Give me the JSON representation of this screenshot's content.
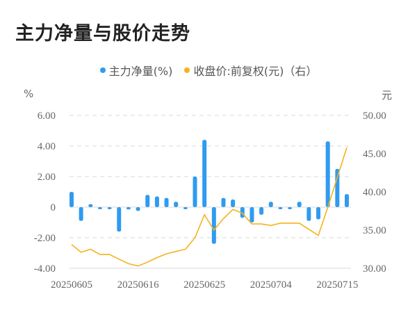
{
  "title": "主力净量与股价走势",
  "legend": [
    {
      "label": "主力净量(%)",
      "color": "#2f9bf0"
    },
    {
      "label": "收盘价:前复权(元)（右）",
      "color": "#f5b21b"
    }
  ],
  "left_unit": "%",
  "right_unit": "元",
  "colors": {
    "bar": "#2f9bf0",
    "line": "#f5b21b",
    "grid": "#e6e6e6",
    "text": "#666666"
  },
  "chart_data": {
    "type": "bar+line",
    "title": "主力净量与股价走势",
    "x_tick_labels": [
      "20250605",
      "20250616",
      "20250625",
      "20250704",
      "20250715"
    ],
    "x_tick_indices": [
      0,
      7,
      14,
      21,
      28
    ],
    "left_axis": {
      "label": "%",
      "ticks": [
        "6.00",
        "4.00",
        "2.00",
        "0",
        "-2.00",
        "-4.00"
      ],
      "range": [
        -4,
        6
      ]
    },
    "right_axis": {
      "label": "元",
      "ticks": [
        "50.00",
        "45.00",
        "40.00",
        "35.00",
        "30.00"
      ],
      "range": [
        30,
        50
      ]
    },
    "grid": true,
    "legend_position": "top",
    "series": [
      {
        "name": "主力净量(%)",
        "type": "bar",
        "axis": "left",
        "values": [
          1.0,
          -0.9,
          0.2,
          -0.1,
          -0.1,
          -1.6,
          -0.15,
          -0.25,
          0.8,
          0.7,
          0.6,
          0.35,
          -0.1,
          2.0,
          4.4,
          -2.4,
          0.6,
          0.5,
          -0.7,
          -1.0,
          -0.5,
          0.35,
          -0.1,
          -0.1,
          0.35,
          -0.9,
          -0.8,
          4.3,
          2.5,
          0.85
        ]
      },
      {
        "name": "收盘价:前复权(元)（右）",
        "type": "line",
        "axis": "right",
        "values": [
          33.1,
          32.1,
          32.5,
          31.8,
          31.8,
          31.2,
          30.6,
          30.3,
          30.8,
          31.4,
          31.9,
          32.2,
          32.5,
          34.0,
          37.0,
          35.0,
          36.5,
          37.7,
          37.2,
          35.8,
          35.8,
          35.6,
          35.9,
          35.9,
          35.9,
          35.1,
          34.3,
          38.0,
          41.9,
          45.8
        ]
      }
    ]
  }
}
